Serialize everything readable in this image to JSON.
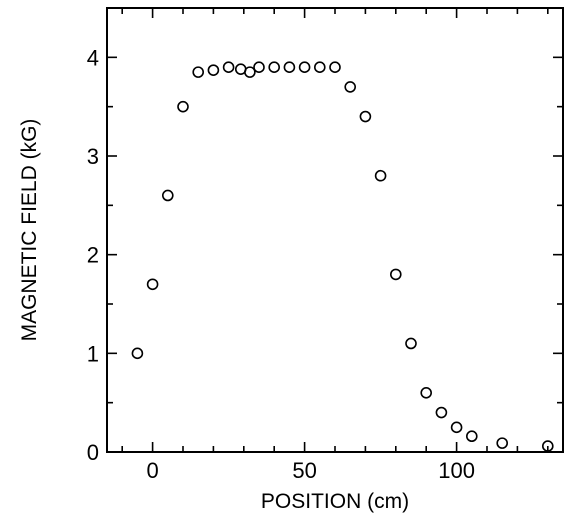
{
  "chart_data": {
    "type": "scatter",
    "xlabel": "POSITION (cm)",
    "ylabel": "MAGNETIC FIELD (kG)",
    "xlim": [
      -15,
      135
    ],
    "ylim": [
      0,
      4.5
    ],
    "grid": false,
    "marker": "open-circle",
    "x_ticks": [
      0,
      50,
      100
    ],
    "y_ticks": [
      0,
      1,
      2,
      3,
      4
    ],
    "x_tick_labels": [
      "0",
      "50",
      "100"
    ],
    "y_tick_labels": [
      "0",
      "1",
      "2",
      "3",
      "4"
    ],
    "series": [
      {
        "points": [
          {
            "x": -5,
            "y": 1.0
          },
          {
            "x": 0,
            "y": 1.7
          },
          {
            "x": 5,
            "y": 2.6
          },
          {
            "x": 10,
            "y": 3.5
          },
          {
            "x": 15,
            "y": 3.85
          },
          {
            "x": 20,
            "y": 3.87
          },
          {
            "x": 25,
            "y": 3.9
          },
          {
            "x": 29,
            "y": 3.88
          },
          {
            "x": 32,
            "y": 3.85
          },
          {
            "x": 35,
            "y": 3.9
          },
          {
            "x": 40,
            "y": 3.9
          },
          {
            "x": 45,
            "y": 3.9
          },
          {
            "x": 50,
            "y": 3.9
          },
          {
            "x": 55,
            "y": 3.9
          },
          {
            "x": 60,
            "y": 3.9
          },
          {
            "x": 65,
            "y": 3.7
          },
          {
            "x": 70,
            "y": 3.4
          },
          {
            "x": 75,
            "y": 2.8
          },
          {
            "x": 80,
            "y": 1.8
          },
          {
            "x": 85,
            "y": 1.1
          },
          {
            "x": 90,
            "y": 0.6
          },
          {
            "x": 95,
            "y": 0.4
          },
          {
            "x": 100,
            "y": 0.25
          },
          {
            "x": 105,
            "y": 0.16
          },
          {
            "x": 115,
            "y": 0.09
          },
          {
            "x": 130,
            "y": 0.06
          }
        ]
      }
    ]
  }
}
